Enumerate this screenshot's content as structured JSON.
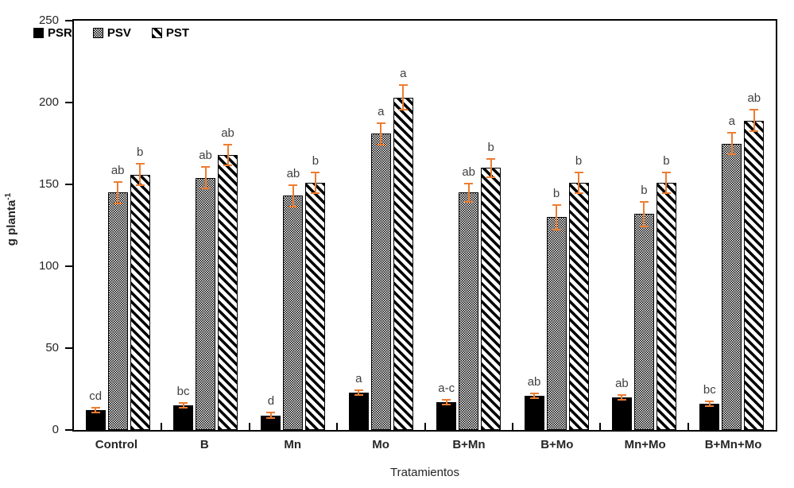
{
  "figure": {
    "xlabel": "Tratamientos",
    "ylabel_base": "g planta",
    "ylabel_sup": "-1"
  },
  "chart_data": {
    "type": "bar",
    "title": "",
    "xlabel": "Tratamientos",
    "ylabel": "g planta⁻¹",
    "ylim": [
      0,
      250
    ],
    "yticks": [
      0,
      50,
      100,
      150,
      200,
      250
    ],
    "grid": false,
    "legend_position": "top-left-inside",
    "error_bar_color": "#ED7D31",
    "categories": [
      "Control",
      "B",
      "Mn",
      "Mo",
      "B+Mn",
      "B+Mo",
      "Mn+Mo",
      "B+Mn+Mo"
    ],
    "series": [
      {
        "name": "PSR",
        "pattern": "solid-black",
        "css": "fill-psr",
        "values": [
          12,
          15,
          9,
          23,
          17,
          21,
          20,
          16
        ],
        "errors": [
          2,
          2,
          2,
          2,
          2,
          2,
          2,
          2
        ],
        "letters": [
          "cd",
          "bc",
          "d",
          "a",
          "a-c",
          "ab",
          "ab",
          "bc"
        ]
      },
      {
        "name": "PSV",
        "pattern": "dotted-gray",
        "css": "fill-psv",
        "values": [
          145,
          154,
          143,
          181,
          145,
          130,
          132,
          175
        ],
        "errors": [
          7,
          7,
          7,
          7,
          6,
          8,
          8,
          7
        ],
        "letters": [
          "ab",
          "ab",
          "ab",
          "a",
          "ab",
          "b",
          "b",
          "a"
        ]
      },
      {
        "name": "PST",
        "pattern": "diagonal-stripe",
        "css": "fill-pst",
        "values": [
          156,
          168,
          151,
          203,
          160,
          151,
          151,
          189
        ],
        "errors": [
          7,
          7,
          7,
          8,
          6,
          7,
          7,
          7
        ],
        "letters": [
          "b",
          "ab",
          "b",
          "a",
          "b",
          "b",
          "b",
          "ab"
        ]
      }
    ]
  }
}
